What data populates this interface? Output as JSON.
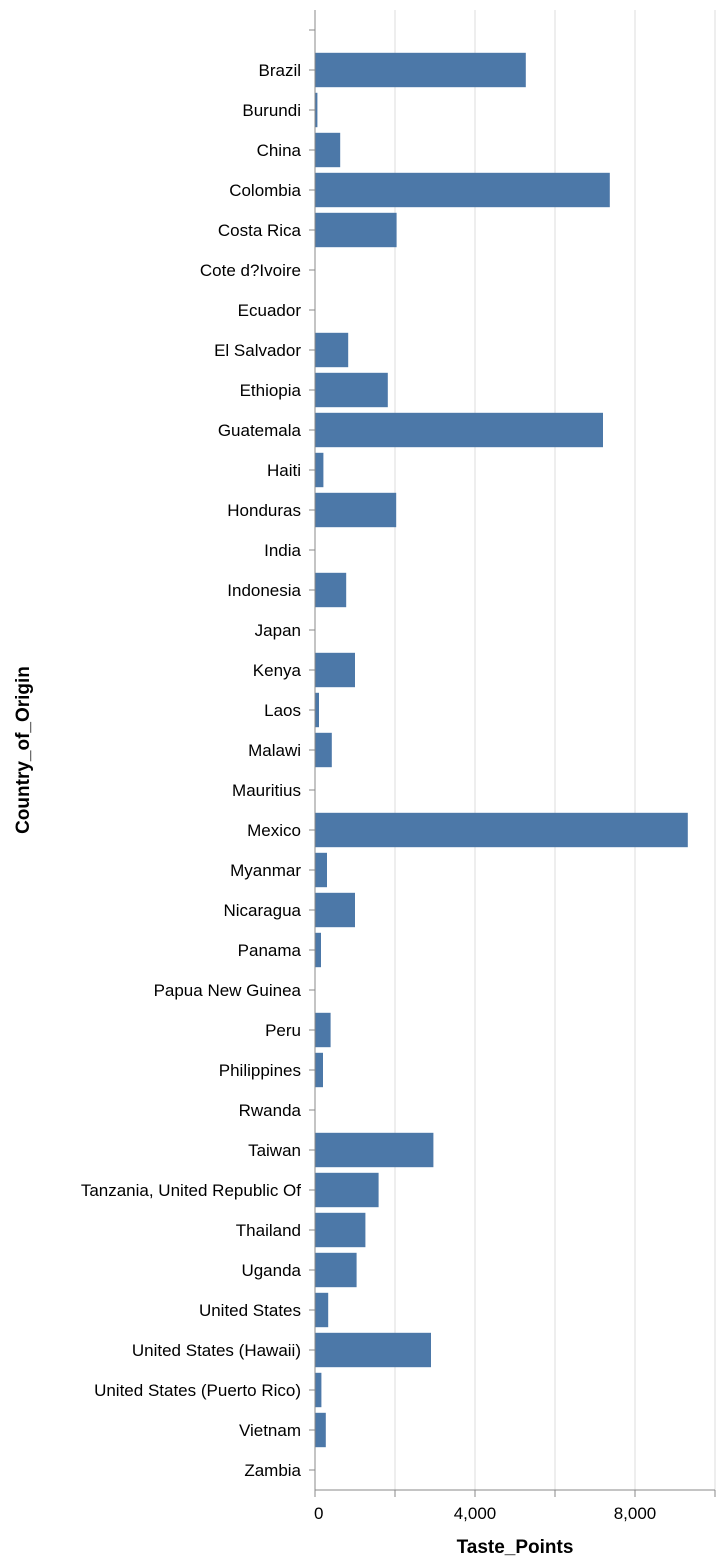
{
  "chart_data": {
    "type": "bar",
    "orientation": "horizontal",
    "title": "",
    "xlabel": "Taste_Points",
    "ylabel": "Country_of_Origin",
    "xlim": [
      0,
      10000
    ],
    "x_ticks": [
      0,
      2000,
      4000,
      6000,
      8000,
      10000
    ],
    "x_tick_labels": [
      "0",
      "",
      "4,000",
      "",
      "8,000",
      ""
    ],
    "grid": true,
    "bar_color": "#4c78a8",
    "categories": [
      "",
      "Brazil",
      "Burundi",
      "China",
      "Colombia",
      "Costa Rica",
      "Cote d?Ivoire",
      "Ecuador",
      "El Salvador",
      "Ethiopia",
      "Guatemala",
      "Haiti",
      "Honduras",
      "India",
      "Indonesia",
      "Japan",
      "Kenya",
      "Laos",
      "Malawi",
      "Mauritius",
      "Mexico",
      "Myanmar",
      "Nicaragua",
      "Panama",
      "Papua New Guinea",
      "Peru",
      "Philippines",
      "Rwanda",
      "Taiwan",
      "Tanzania, United Republic Of",
      "Thailand",
      "Uganda",
      "United States",
      "United States (Hawaii)",
      "United States (Puerto Rico)",
      "Vietnam",
      "Zambia"
    ],
    "values": [
      0,
      5270,
      60,
      630,
      7370,
      2040,
      0,
      0,
      830,
      1820,
      7200,
      210,
      2030,
      0,
      780,
      0,
      1000,
      100,
      420,
      0,
      9320,
      300,
      1000,
      150,
      0,
      390,
      200,
      0,
      2960,
      1590,
      1260,
      1040,
      330,
      2900,
      160,
      270,
      0
    ]
  }
}
